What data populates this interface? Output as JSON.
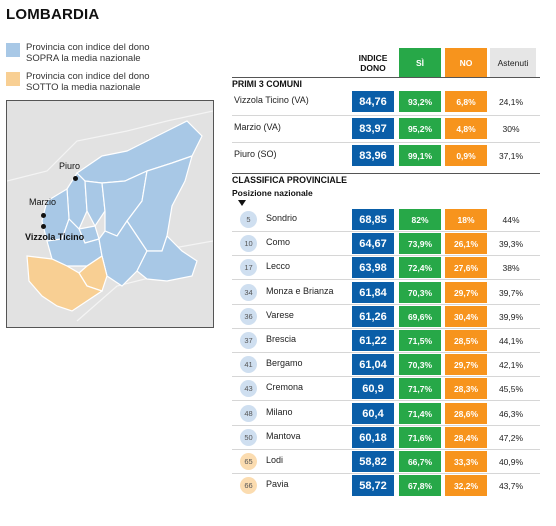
{
  "title": "LOMBARDIA",
  "legend": {
    "above": {
      "line1": "Provincia con indice del dono",
      "line2": "SOPRA la media nazionale",
      "color": "#a8c8e6"
    },
    "below": {
      "line1": "Provincia con indice del dono",
      "line2": "SOTTO la media nazionale",
      "color": "#f8cf93"
    }
  },
  "map": {
    "labels": {
      "piuro": "Piuro",
      "marzio": "Marzio",
      "vizzola": "Vizzola Ticino"
    },
    "colors": {
      "above": "#a8c8e6",
      "below": "#f8cf93",
      "background": "#e4e4e4",
      "borders": "#ffffff"
    }
  },
  "table": {
    "headers": {
      "index": "INDICE DONO",
      "si": "SÌ",
      "no": "NO",
      "astenuti": "Astenuti"
    },
    "section_top": "PRIMI 3 COMUNI",
    "top_comuni": [
      {
        "name": "Vizzola Ticino (VA)",
        "index": "84,76",
        "si": "93,2%",
        "no": "6,8%",
        "ast": "24,1%"
      },
      {
        "name": "Marzio (VA)",
        "index": "83,97",
        "si": "95,2%",
        "no": "4,8%",
        "ast": "30%"
      },
      {
        "name": "Piuro (SO)",
        "index": "83,96",
        "si": "99,1%",
        "no": "0,9%",
        "ast": "37,1%"
      }
    ],
    "section_prov": "CLASSIFICA PROVINCIALE",
    "subheader": "Posizione nazionale",
    "provinces": [
      {
        "rank": "5",
        "name": "Sondrio",
        "index": "68,85",
        "si": "82%",
        "no": "18%",
        "ast": "44%",
        "status": "above"
      },
      {
        "rank": "10",
        "name": "Como",
        "index": "64,67",
        "si": "73,9%",
        "no": "26,1%",
        "ast": "39,3%",
        "status": "above"
      },
      {
        "rank": "17",
        "name": "Lecco",
        "index": "63,98",
        "si": "72,4%",
        "no": "27,6%",
        "ast": "38%",
        "status": "above"
      },
      {
        "rank": "34",
        "name": "Monza e Brianza",
        "index": "61,84",
        "si": "70,3%",
        "no": "29,7%",
        "ast": "39,7%",
        "status": "above"
      },
      {
        "rank": "36",
        "name": "Varese",
        "index": "61,26",
        "si": "69,6%",
        "no": "30,4%",
        "ast": "39,9%",
        "status": "above"
      },
      {
        "rank": "37",
        "name": "Brescia",
        "index": "61,22",
        "si": "71,5%",
        "no": "28,5%",
        "ast": "44,1%",
        "status": "above"
      },
      {
        "rank": "41",
        "name": "Bergamo",
        "index": "61,04",
        "si": "70,3%",
        "no": "29,7%",
        "ast": "42,1%",
        "status": "above"
      },
      {
        "rank": "43",
        "name": "Cremona",
        "index": "60,9",
        "si": "71,7%",
        "no": "28,3%",
        "ast": "45,5%",
        "status": "above"
      },
      {
        "rank": "48",
        "name": "Milano",
        "index": "60,4",
        "si": "71,4%",
        "no": "28,6%",
        "ast": "46,3%",
        "status": "above"
      },
      {
        "rank": "50",
        "name": "Mantova",
        "index": "60,18",
        "si": "71,6%",
        "no": "28,4%",
        "ast": "47,2%",
        "status": "above"
      },
      {
        "rank": "65",
        "name": "Lodi",
        "index": "58,82",
        "si": "66,7%",
        "no": "33,3%",
        "ast": "40,9%",
        "status": "below"
      },
      {
        "rank": "66",
        "name": "Pavia",
        "index": "58,72",
        "si": "67,8%",
        "no": "32,2%",
        "ast": "43,7%",
        "status": "below"
      }
    ],
    "colors": {
      "index": "#0a5ea8",
      "si": "#27a848",
      "no": "#f7941d",
      "rank_above": "#cfdff0",
      "rank_below": "#fbdcb0"
    }
  }
}
